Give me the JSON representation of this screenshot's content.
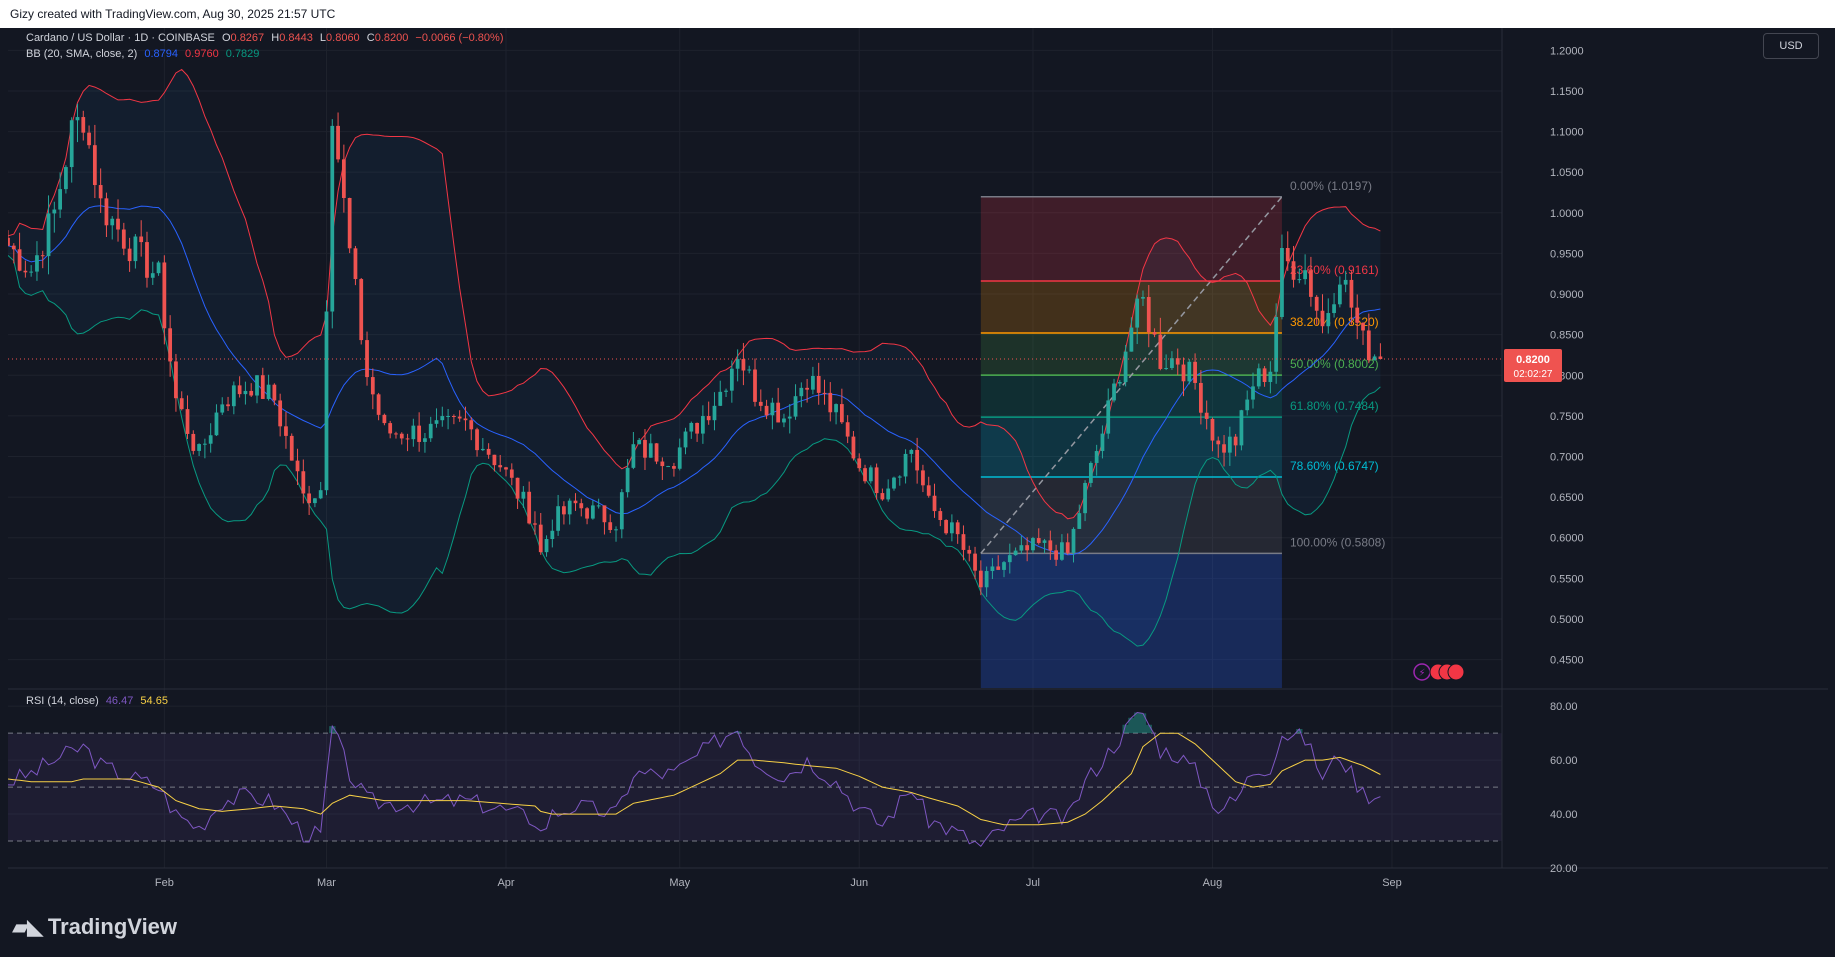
{
  "header": {
    "credit": "Gizy created with TradingView.com, Aug 30, 2025 21:57 UTC"
  },
  "legend": {
    "symbol": "Cardano / US Dollar · 1D · COINBASE",
    "o_label": "O",
    "o": "0.8267",
    "h_label": "H",
    "h": "0.8443",
    "l_label": "L",
    "l": "0.8060",
    "c_label": "C",
    "c": "0.8200",
    "change": "−0.0066 (−0.80%)",
    "bb_label": "BB (20, SMA, close, 2)",
    "bb_mid": "0.8794",
    "bb_upper": "0.9760",
    "bb_lower": "0.7829",
    "rsi_label": "RSI (14, close)",
    "rsi": "46.47",
    "rsi_ma": "54.65"
  },
  "currency_button": "USD",
  "price_tag": {
    "value": "0.8200",
    "countdown": "02:02:27"
  },
  "footer": {
    "brand": "TradingView"
  },
  "colors": {
    "up": "#26a69a",
    "down": "#ef5350",
    "bb_mid": "#2962ff",
    "bb_upper": "#f23645",
    "bb_lower": "#089981",
    "rsi": "#7e57c2",
    "rsi_ma": "#f7d046"
  },
  "chart_data": [
    {
      "type": "candlestick",
      "title": "Cardano / US Dollar · 1D · COINBASE",
      "x_ticks": [
        "Feb",
        "Mar",
        "Apr",
        "May",
        "Jun",
        "Jul",
        "Aug",
        "Sep"
      ],
      "x_range": [
        "2025-01-05",
        "2025-09-20"
      ],
      "y_ticks": [
        "1.2000",
        "1.1500",
        "1.1000",
        "1.0500",
        "1.0000",
        "0.9500",
        "0.9000",
        "0.8500",
        "0.8000",
        "0.7500",
        "0.7000",
        "0.6500",
        "0.6000",
        "0.5500",
        "0.5000",
        "0.4500"
      ],
      "ylim": [
        0.415,
        1.2275
      ],
      "close_anchors": [
        [
          "2025-01-05",
          0.96
        ],
        [
          "2025-01-09",
          0.93
        ],
        [
          "2025-01-13",
          1.0
        ],
        [
          "2025-01-16",
          1.1
        ],
        [
          "2025-01-18",
          1.12
        ],
        [
          "2025-01-21",
          1.01
        ],
        [
          "2025-01-26",
          0.96
        ],
        [
          "2025-01-31",
          0.92
        ],
        [
          "2025-02-03",
          0.77
        ],
        [
          "2025-02-07",
          0.7
        ],
        [
          "2025-02-11",
          0.77
        ],
        [
          "2025-02-16",
          0.79
        ],
        [
          "2025-02-20",
          0.77
        ],
        [
          "2025-02-25",
          0.65
        ],
        [
          "2025-02-28",
          0.66
        ],
        [
          "2025-03-02",
          1.13
        ],
        [
          "2025-03-05",
          0.95
        ],
        [
          "2025-03-08",
          0.8
        ],
        [
          "2025-03-11",
          0.73
        ],
        [
          "2025-03-18",
          0.73
        ],
        [
          "2025-03-25",
          0.74
        ],
        [
          "2025-03-31",
          0.69
        ],
        [
          "2025-04-06",
          0.62
        ],
        [
          "2025-04-07",
          0.58
        ],
        [
          "2025-04-09",
          0.62
        ],
        [
          "2025-04-13",
          0.64
        ],
        [
          "2025-04-20",
          0.62
        ],
        [
          "2025-04-23",
          0.71
        ],
        [
          "2025-04-30",
          0.7
        ],
        [
          "2025-05-08",
          0.78
        ],
        [
          "2025-05-11",
          0.83
        ],
        [
          "2025-05-14",
          0.78
        ],
        [
          "2025-05-19",
          0.75
        ],
        [
          "2025-05-23",
          0.8
        ],
        [
          "2025-05-28",
          0.75
        ],
        [
          "2025-06-01",
          0.69
        ],
        [
          "2025-06-05",
          0.66
        ],
        [
          "2025-06-10",
          0.71
        ],
        [
          "2025-06-13",
          0.64
        ],
        [
          "2025-06-18",
          0.6
        ],
        [
          "2025-06-22",
          0.54
        ],
        [
          "2025-06-26",
          0.57
        ],
        [
          "2025-07-02",
          0.59
        ],
        [
          "2025-07-07",
          0.58
        ],
        [
          "2025-07-10",
          0.66
        ],
        [
          "2025-07-13",
          0.73
        ],
        [
          "2025-07-18",
          0.86
        ],
        [
          "2025-07-20",
          0.89
        ],
        [
          "2025-07-23",
          0.82
        ],
        [
          "2025-07-26",
          0.82
        ],
        [
          "2025-07-29",
          0.79
        ],
        [
          "2025-08-02",
          0.71
        ],
        [
          "2025-08-05",
          0.72
        ],
        [
          "2025-08-08",
          0.79
        ],
        [
          "2025-08-11",
          0.81
        ],
        [
          "2025-08-13",
          0.94
        ],
        [
          "2025-08-17",
          0.93
        ],
        [
          "2025-08-20",
          0.86
        ],
        [
          "2025-08-23",
          0.93
        ],
        [
          "2025-08-27",
          0.84
        ],
        [
          "2025-08-30",
          0.82
        ]
      ],
      "last_close": 0.82,
      "fibonacci": {
        "levels": [
          {
            "label": "0.00% (1.0197)",
            "price": 1.0197,
            "color": "#787b86"
          },
          {
            "label": "23.60% (0.9161)",
            "price": 0.9161,
            "color": "#f23645"
          },
          {
            "label": "38.20% (0.8520)",
            "price": 0.852,
            "color": "#ff9800"
          },
          {
            "label": "50.00% (0.8002)",
            "price": 0.8002,
            "color": "#4caf50"
          },
          {
            "label": "61.80% (0.7484)",
            "price": 0.7484,
            "color": "#089981"
          },
          {
            "label": "78.60% (0.6747)",
            "price": 0.6747,
            "color": "#00bcd4"
          },
          {
            "label": "100.00% (0.5808)",
            "price": 0.5808,
            "color": "#787b86"
          }
        ],
        "from_date": "2025-06-22",
        "to_date": "2025-08-13"
      },
      "legend_position": "top-left"
    },
    {
      "type": "line",
      "title": "RSI (14, close)",
      "y_ticks": [
        "80.00",
        "60.00",
        "40.00",
        "20.00"
      ],
      "ylim": [
        20,
        86
      ],
      "bands": [
        70,
        50,
        30
      ],
      "series": [
        {
          "name": "RSI",
          "values_at_anchors": [
            52,
            55,
            60,
            63,
            65,
            58,
            54,
            50,
            40,
            35,
            45,
            47,
            44,
            33,
            32,
            72,
            55,
            45,
            44,
            44,
            45,
            42,
            38,
            33,
            40,
            43,
            40,
            55,
            55,
            68,
            72,
            60,
            54,
            60,
            52,
            42,
            36,
            50,
            38,
            33,
            28,
            35,
            40,
            38,
            52,
            60,
            74,
            78,
            64,
            62,
            56,
            42,
            45,
            56,
            58,
            70,
            68,
            54,
            62,
            48,
            46
          ]
        },
        {
          "name": "MA",
          "values_at_anchors": [
            53,
            52,
            52,
            52,
            53,
            53,
            53,
            50,
            45,
            42,
            41,
            42,
            43,
            42,
            40,
            44,
            47,
            46,
            45,
            45,
            45,
            44,
            43,
            41,
            40,
            40,
            40,
            44,
            47,
            55,
            60,
            60,
            59,
            58,
            57,
            54,
            50,
            48,
            46,
            43,
            38,
            36,
            36,
            37,
            40,
            45,
            55,
            65,
            70,
            70,
            66,
            58,
            52,
            50,
            51,
            56,
            60,
            60,
            61,
            58,
            54.65
          ]
        }
      ]
    }
  ]
}
